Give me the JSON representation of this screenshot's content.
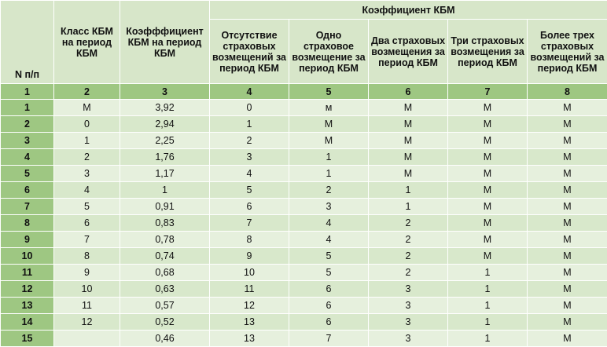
{
  "header": {
    "n": "N п/п",
    "class": "Класс КБМ на период КБМ",
    "coef": "Коэфффициент КБМ на период КБМ",
    "group": "Коэффициент КБМ",
    "c4": "Отсутствие страховых возмещений за период КБМ",
    "c5": "Одно страховое возмещение за период КБМ",
    "c6": "Два страховых возмещения за период КБМ",
    "c7": "Три страховых возмещения за период КБМ",
    "c8": "Более трех страховых возмещений за период КБМ"
  },
  "index_row": [
    "1",
    "2",
    "3",
    "4",
    "5",
    "6",
    "7",
    "8"
  ],
  "rows": [
    [
      "1",
      "М",
      "3,92",
      "0",
      "м",
      "М",
      "М",
      "М"
    ],
    [
      "2",
      "0",
      "2,94",
      "1",
      "М",
      "М",
      "М",
      "М"
    ],
    [
      "3",
      "1",
      "2,25",
      "2",
      "М",
      "М",
      "М",
      "М"
    ],
    [
      "4",
      "2",
      "1,76",
      "3",
      "1",
      "М",
      "М",
      "М"
    ],
    [
      "5",
      "3",
      "1,17",
      "4",
      "1",
      "М",
      "М",
      "М"
    ],
    [
      "6",
      "4",
      "1",
      "5",
      "2",
      "1",
      "М",
      "М"
    ],
    [
      "7",
      "5",
      "0,91",
      "6",
      "3",
      "1",
      "М",
      "М"
    ],
    [
      "8",
      "6",
      "0,83",
      "7",
      "4",
      "2",
      "М",
      "М"
    ],
    [
      "9",
      "7",
      "0,78",
      "8",
      "4",
      "2",
      "М",
      "М"
    ],
    [
      "10",
      "8",
      "0,74",
      "9",
      "5",
      "2",
      "М",
      "М"
    ],
    [
      "11",
      "9",
      "0,68",
      "10",
      "5",
      "2",
      "1",
      "М"
    ],
    [
      "12",
      "10",
      "0,63",
      "11",
      "6",
      "3",
      "1",
      "М"
    ],
    [
      "13",
      "11",
      "0,57",
      "12",
      "6",
      "3",
      "1",
      "М"
    ],
    [
      "14",
      "12",
      "0,52",
      "13",
      "6",
      "3",
      "1",
      "М"
    ],
    [
      "15",
      "",
      "0,46",
      "13",
      "7",
      "3",
      "1",
      "М"
    ]
  ]
}
